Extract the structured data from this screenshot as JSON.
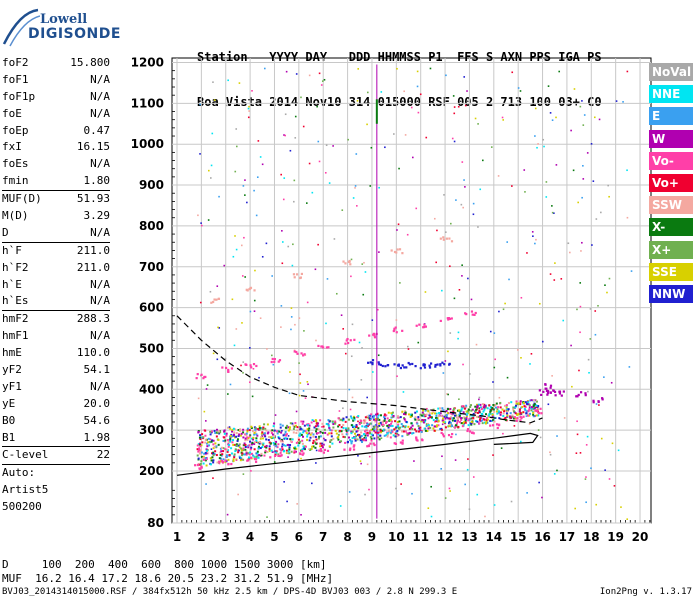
{
  "logo": {
    "brand_top": "Lowell",
    "brand_bottom": "DIGISONDE"
  },
  "header": {
    "line1": "Station   YYYY DAY   DDD HHMMSS P1  FFS S AXN PPS IGA PS",
    "line2": "Boa Vista 2014 Nov10 314 015000 RSF 005 2 713 100 03+ C0"
  },
  "params": [
    {
      "name": "foF2",
      "value": "15.800"
    },
    {
      "name": "foF1",
      "value": "N/A"
    },
    {
      "name": "foF1p",
      "value": "N/A"
    },
    {
      "name": "foE",
      "value": "N/A"
    },
    {
      "name": "foEp",
      "value": "0.47"
    },
    {
      "name": "fxI",
      "value": "16.15"
    },
    {
      "name": "foEs",
      "value": "N/A"
    },
    {
      "name": "fmin",
      "value": "1.80"
    },
    {
      "sep": true
    },
    {
      "name": "MUF(D)",
      "value": "51.93"
    },
    {
      "name": "M(D)",
      "value": "3.29"
    },
    {
      "name": "D",
      "value": "N/A"
    },
    {
      "sep": true
    },
    {
      "name": "h`F",
      "value": "211.0"
    },
    {
      "name": "h`F2",
      "value": "211.0"
    },
    {
      "name": "h`E",
      "value": "N/A"
    },
    {
      "name": "h`Es",
      "value": "N/A"
    },
    {
      "sep": true
    },
    {
      "name": "hmF2",
      "value": "288.3"
    },
    {
      "name": "hmF1",
      "value": "N/A"
    },
    {
      "name": "hmE",
      "value": "110.0"
    },
    {
      "name": "yF2",
      "value": "54.1"
    },
    {
      "name": "yF1",
      "value": "N/A"
    },
    {
      "name": "yE",
      "value": "20.0"
    },
    {
      "name": "B0",
      "value": "54.6"
    },
    {
      "name": "B1",
      "value": "1.98"
    },
    {
      "sep": true
    },
    {
      "name": "C-level",
      "value": "22"
    },
    {
      "sep": true
    },
    {
      "name": "Auto:",
      "value": ""
    },
    {
      "name": "Artist5",
      "value": ""
    },
    {
      "name": "500200",
      "value": ""
    }
  ],
  "legend": [
    {
      "label": "NoVal",
      "color": "#a9a9a9"
    },
    {
      "label": "NNE",
      "color": "#00e5f2"
    },
    {
      "label": "E",
      "color": "#3aa0f0"
    },
    {
      "label": "W",
      "color": "#b000b0"
    },
    {
      "label": "Vo-",
      "color": "#ff3fa8"
    },
    {
      "label": "Vo+",
      "color": "#f00030"
    },
    {
      "label": "SSW",
      "color": "#f4a8a0"
    },
    {
      "label": "X-",
      "color": "#0a7a10"
    },
    {
      "label": "X+",
      "color": "#70b050"
    },
    {
      "label": "SSE",
      "color": "#d8d000"
    },
    {
      "label": "NNW",
      "color": "#2020d0"
    }
  ],
  "footer": {
    "d_row": "D     100  200  400  600  800 1000 1500 3000 [km]",
    "muf_row": "MUF  16.2 16.4 17.2 18.6 20.5 23.2 31.2 51.9 [MHz]",
    "status_left": "BVJ03_2014314015000.RSF / 384fx512h 50 kHz 2.5 km / DPS-4D BVJ03 003 / 2.8 N 299.3 E",
    "status_right": "Ion2Png v. 1.3.17"
  },
  "chart_data": {
    "type": "scatter",
    "x_ticks": [
      "1",
      "2",
      "3",
      "4",
      "5",
      "6",
      "7",
      "8",
      "9",
      "10",
      "11",
      "12",
      "13",
      "14",
      "15",
      "16",
      "17",
      "18",
      "19",
      "20"
    ],
    "y_ticks": [
      "80",
      "200",
      "300",
      "400",
      "500",
      "600",
      "700",
      "800",
      "900",
      "1000",
      "1100",
      "1200"
    ],
    "xlim": [
      0.75,
      20.25
    ],
    "ylim_scale": "non-linear (80 at bottom, 200-1200 linear)",
    "grid": true,
    "series": [
      {
        "name": "F2 trace (O-mode)",
        "color": "#ff3fa8",
        "x": [
          1.8,
          3,
          4,
          5,
          6,
          7,
          8,
          9,
          10,
          11,
          12,
          13,
          14,
          15,
          15.8
        ],
        "y": [
          212,
          222,
          230,
          238,
          246,
          252,
          260,
          268,
          275,
          283,
          291,
          300,
          312,
          330,
          350
        ]
      },
      {
        "name": "2nd hop trace",
        "color": "#ff3fa8",
        "x": [
          1.9,
          3,
          4,
          5,
          6,
          7,
          8,
          9,
          10,
          11,
          12,
          13
        ],
        "y": [
          435,
          450,
          462,
          475,
          490,
          505,
          520,
          535,
          548,
          560,
          575,
          590
        ]
      },
      {
        "name": "3rd hop trace",
        "color": "#f4a8a0",
        "x": [
          2.5,
          4,
          6,
          8,
          10,
          12
        ],
        "y": [
          620,
          650,
          680,
          712,
          740,
          770
        ]
      },
      {
        "name": "Es / F layer NNW",
        "color": "#2020d0",
        "x": [
          9,
          9.5,
          10,
          10.5,
          11,
          11.5,
          12
        ],
        "y": [
          470,
          465,
          460,
          462,
          458,
          460,
          462
        ]
      },
      {
        "name": "W echoes",
        "color": "#b000b0",
        "x": [
          16.0,
          16.2,
          16.4,
          16.6,
          17.5,
          18.2
        ],
        "y": [
          395,
          410,
          400,
          392,
          390,
          375
        ]
      }
    ],
    "curves": [
      {
        "name": "profile (solid)",
        "points": [
          [
            1,
            190
          ],
          [
            3,
            205
          ],
          [
            6,
            225
          ],
          [
            9,
            245
          ],
          [
            12,
            265
          ],
          [
            14,
            280
          ],
          [
            15.5,
            292
          ],
          [
            15.8,
            287
          ],
          [
            15.6,
            270
          ],
          [
            14,
            265
          ]
        ]
      },
      {
        "name": "x-trace (dashed)",
        "points": [
          [
            1,
            580
          ],
          [
            2,
            520
          ],
          [
            3,
            470
          ],
          [
            4,
            430
          ],
          [
            5,
            405
          ],
          [
            6,
            385
          ],
          [
            8,
            370
          ],
          [
            10,
            360
          ],
          [
            12,
            345
          ],
          [
            13.5,
            335
          ],
          [
            14.5,
            325
          ],
          [
            15.5,
            318
          ],
          [
            16,
            330
          ]
        ]
      }
    ]
  }
}
